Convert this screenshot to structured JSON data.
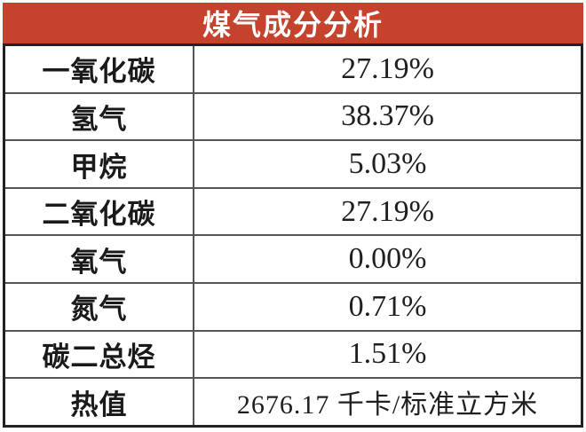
{
  "header": {
    "title": "煤气成分分析",
    "background_color": "#c5432c",
    "text_color": "#ffffff"
  },
  "table": {
    "border_outer_color": "#222222",
    "border_inner_color": "#555555",
    "rows": [
      {
        "label": "一氧化碳",
        "value": "27.19%"
      },
      {
        "label": "氢气",
        "value": "38.37%"
      },
      {
        "label": "甲烷",
        "value": "5.03%"
      },
      {
        "label": "二氧化碳",
        "value": "27.19%"
      },
      {
        "label": "氧气",
        "value": "0.00%"
      },
      {
        "label": "氮气",
        "value": "0.71%"
      },
      {
        "label": "碳二总烃",
        "value": "1.51%"
      },
      {
        "label": "热值",
        "value": "2676.17 千卡/标准立方米"
      }
    ]
  },
  "chart_data": {
    "type": "table",
    "title": "煤气成分分析",
    "rows": [
      [
        "一氧化碳",
        "27.19%"
      ],
      [
        "氢气",
        "38.37%"
      ],
      [
        "甲烷",
        "5.03%"
      ],
      [
        "二氧化碳",
        "27.19%"
      ],
      [
        "氧气",
        "0.00%"
      ],
      [
        "氮气",
        "0.71%"
      ],
      [
        "碳二总烃",
        "1.51%"
      ],
      [
        "热值",
        "2676.17 千卡/标准立方米"
      ]
    ],
    "numeric_percent": {
      "一氧化碳": 27.19,
      "氢气": 38.37,
      "甲烷": 5.03,
      "二氧化碳": 27.19,
      "氧气": 0.0,
      "氮气": 0.71,
      "碳二总烃": 1.51
    },
    "heat_value": {
      "label": "热值",
      "value": 2676.17,
      "unit": "千卡/标准立方米"
    },
    "layout": {
      "header_background": "#c5432c",
      "grid": true,
      "columns": 2
    }
  }
}
